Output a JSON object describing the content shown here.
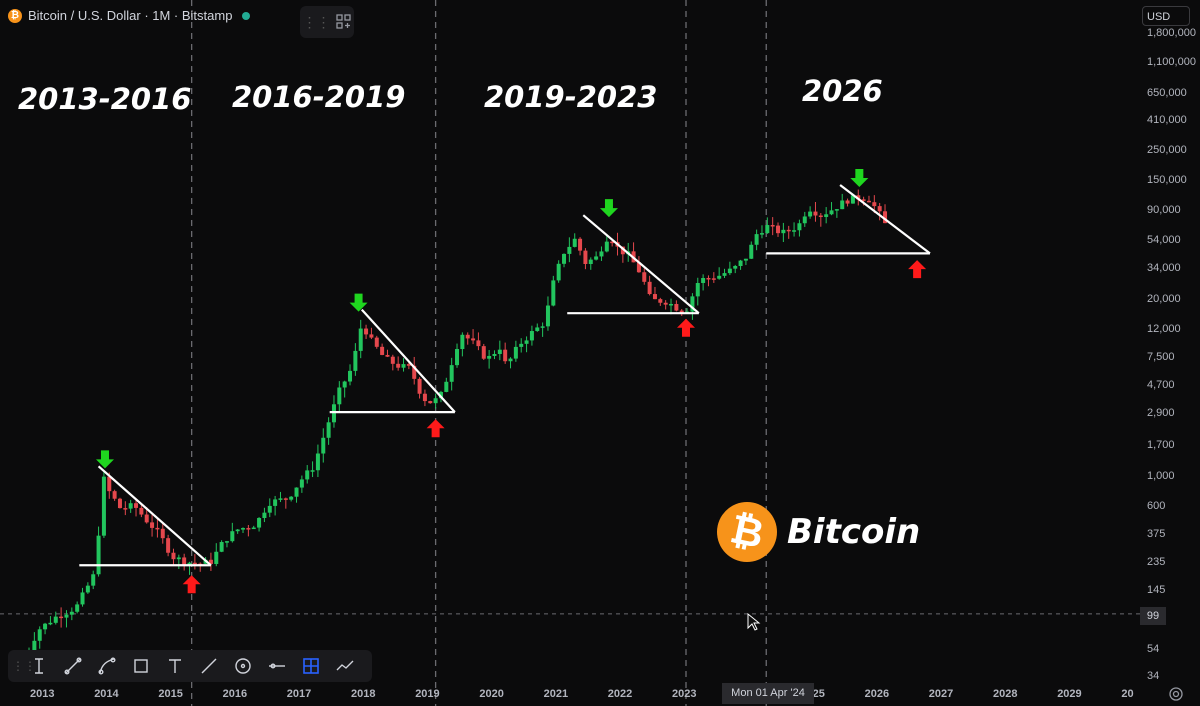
{
  "header": {
    "symbol_title": "Bitcoin / U.S. Dollar · 1M · Bitstamp",
    "currency": "USD"
  },
  "eras": [
    "2013-2016",
    "2016-2019",
    "2019-2023",
    "2026"
  ],
  "brand": {
    "logo_glyph": "₿",
    "name": "Bitcoin",
    "color": "#f7931a"
  },
  "crosshair": {
    "date_label": "Mon 01 Apr '24",
    "price_label": "99"
  },
  "colors": {
    "up": "#26a69a",
    "down": "#ef5350",
    "green_up": "#22c55e",
    "red_down": "#e5484d",
    "line": "#ffffff",
    "arrow_green": "#1fd61f",
    "arrow_red": "#ff1a1a"
  },
  "toolbar": {
    "tools": [
      "text-cursor-icon",
      "trendline-icon",
      "curve-icon",
      "rectangle-icon",
      "text-tool-icon",
      "line-icon",
      "circle-icon",
      "horizontal-line-icon",
      "grid-select-icon",
      "path-icon"
    ]
  },
  "chart_data": {
    "type": "candlestick",
    "title": "Bitcoin / U.S. Dollar · 1M · Bitstamp",
    "y_scale": "log",
    "ylim": [
      30,
      1800000
    ],
    "y_ticks": [
      1800000,
      1100000,
      650000,
      410000,
      250000,
      150000,
      90000,
      54000,
      34000,
      20000,
      12000,
      7500,
      4700,
      2900,
      1700,
      1000,
      600,
      375,
      235,
      145,
      99,
      54,
      34
    ],
    "y_tick_labels": [
      "1,800,000",
      "1,100,000",
      "650,000",
      "410,000",
      "250,000",
      "150,000",
      "90,000",
      "54,000",
      "34,000",
      "20,000",
      "12,000",
      "7,500",
      "4,700",
      "2,900",
      "1,700",
      "1,000",
      "600",
      "375",
      "235",
      "145",
      "99",
      "54",
      "34"
    ],
    "x_ticks": [
      "2013",
      "2014",
      "2015",
      "2016",
      "2017",
      "2018",
      "2019",
      "2020",
      "2021",
      "2022",
      "2023",
      "2024",
      "2025",
      "2026",
      "2027",
      "2028",
      "2029",
      "20"
    ],
    "x_range": [
      2012.5,
      2030.0
    ],
    "cycle_dividers": [
      2015.3,
      2019.1,
      2023.0,
      2024.25
    ],
    "crosshair": {
      "date": "2024-04-01",
      "price": 99
    },
    "price_path": [
      [
        2012.6,
        35
      ],
      [
        2012.9,
        75
      ],
      [
        2013.2,
        95
      ],
      [
        2013.5,
        110
      ],
      [
        2013.8,
        200
      ],
      [
        2013.92,
        1000
      ],
      [
        2014.0,
        800
      ],
      [
        2014.2,
        580
      ],
      [
        2014.4,
        620
      ],
      [
        2014.6,
        480
      ],
      [
        2014.8,
        380
      ],
      [
        2015.0,
        260
      ],
      [
        2015.2,
        240
      ],
      [
        2015.4,
        230
      ],
      [
        2015.6,
        240
      ],
      [
        2015.8,
        340
      ],
      [
        2016.0,
        410
      ],
      [
        2016.3,
        450
      ],
      [
        2016.5,
        650
      ],
      [
        2016.8,
        700
      ],
      [
        2017.0,
        950
      ],
      [
        2017.2,
        1200
      ],
      [
        2017.4,
        2300
      ],
      [
        2017.6,
        4300
      ],
      [
        2017.8,
        6400
      ],
      [
        2017.95,
        13500
      ],
      [
        2018.1,
        10000
      ],
      [
        2018.3,
        7500
      ],
      [
        2018.5,
        6600
      ],
      [
        2018.7,
        6300
      ],
      [
        2018.9,
        3800
      ],
      [
        2019.05,
        3500
      ],
      [
        2019.2,
        4100
      ],
      [
        2019.4,
        8300
      ],
      [
        2019.5,
        11500
      ],
      [
        2019.7,
        9500
      ],
      [
        2019.9,
        7300
      ],
      [
        2020.1,
        9000
      ],
      [
        2020.2,
        6500
      ],
      [
        2020.4,
        9400
      ],
      [
        2020.6,
        11500
      ],
      [
        2020.8,
        13800
      ],
      [
        2020.95,
        29000
      ],
      [
        2021.1,
        45000
      ],
      [
        2021.3,
        58000
      ],
      [
        2021.4,
        37000
      ],
      [
        2021.6,
        41000
      ],
      [
        2021.8,
        61000
      ],
      [
        2021.95,
        47000
      ],
      [
        2022.1,
        43000
      ],
      [
        2022.3,
        31000
      ],
      [
        2022.45,
        20000
      ],
      [
        2022.7,
        19500
      ],
      [
        2022.9,
        17000
      ],
      [
        2023.0,
        16500
      ],
      [
        2023.2,
        28000
      ],
      [
        2023.5,
        30000
      ],
      [
        2023.75,
        34000
      ],
      [
        2023.95,
        42000
      ],
      [
        2024.1,
        61000
      ],
      [
        2024.25,
        70000
      ],
      [
        2024.5,
        62000
      ],
      [
        2024.75,
        70000
      ],
      [
        2024.9,
        96000
      ],
      [
        2025.1,
        84000
      ],
      [
        2025.3,
        94000
      ],
      [
        2025.5,
        108000
      ],
      [
        2025.7,
        114000
      ],
      [
        2025.85,
        110000
      ],
      [
        2026.0,
        88000
      ],
      [
        2026.1,
        72000
      ]
    ],
    "triangles": [
      {
        "apex": [
          2013.85,
          1200
        ],
        "support": 225,
        "start": 2013.55,
        "end": 2015.6,
        "top_arrow_x": 2013.95,
        "bottom_arrow_x": 2015.3,
        "bottom_arrow_price": 150
      },
      {
        "apex": [
          2017.95,
          17000
        ],
        "support": 3000,
        "start": 2017.45,
        "end": 2019.4,
        "top_arrow_x": 2017.9,
        "bottom_arrow_x": 2019.1,
        "bottom_arrow_price": 2100
      },
      {
        "apex": [
          2021.4,
          84000
        ],
        "support": 16000,
        "start": 2021.15,
        "end": 2023.2,
        "top_arrow_x": 2021.8,
        "bottom_arrow_x": 2023.0,
        "bottom_arrow_price": 11500
      },
      {
        "apex": [
          2025.4,
          140000
        ],
        "support": 44000,
        "start": 2024.25,
        "end": 2026.8,
        "top_arrow_x": 2025.7,
        "bottom_arrow_x": 2026.6,
        "bottom_arrow_price": 31000
      }
    ]
  }
}
